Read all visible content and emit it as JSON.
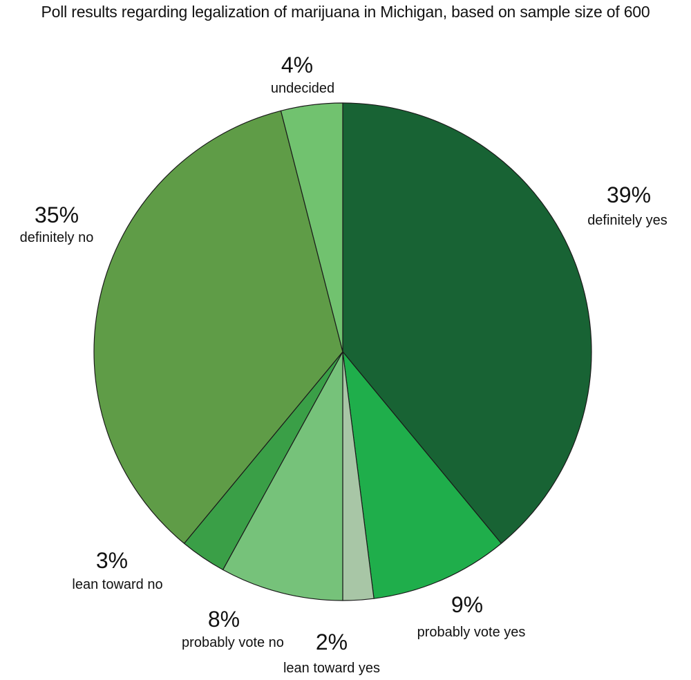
{
  "chart_data": {
    "type": "pie",
    "title": "Poll results regarding legalization of marijuana in Michigan, based on sample size of 600",
    "start_angle_deg": 0,
    "direction": "clockwise",
    "slices": [
      {
        "label": "definitely yes",
        "value": 39,
        "value_label": "39%",
        "color": "#186334"
      },
      {
        "label": "probably vote yes",
        "value": 9,
        "value_label": "9%",
        "color": "#1fae4b"
      },
      {
        "label": "lean toward yes",
        "value": 2,
        "value_label": "2%",
        "color": "#a8c6a6"
      },
      {
        "label": "probably vote no",
        "value": 8,
        "value_label": "8%",
        "color": "#76c27a"
      },
      {
        "label": "lean toward no",
        "value": 3,
        "value_label": "3%",
        "color": "#3a9f47"
      },
      {
        "label": "definitely no",
        "value": 35,
        "value_label": "35%",
        "color": "#5f9c47"
      },
      {
        "label": "undecided",
        "value": 4,
        "value_label": "4%",
        "color": "#71c26f"
      }
    ]
  }
}
